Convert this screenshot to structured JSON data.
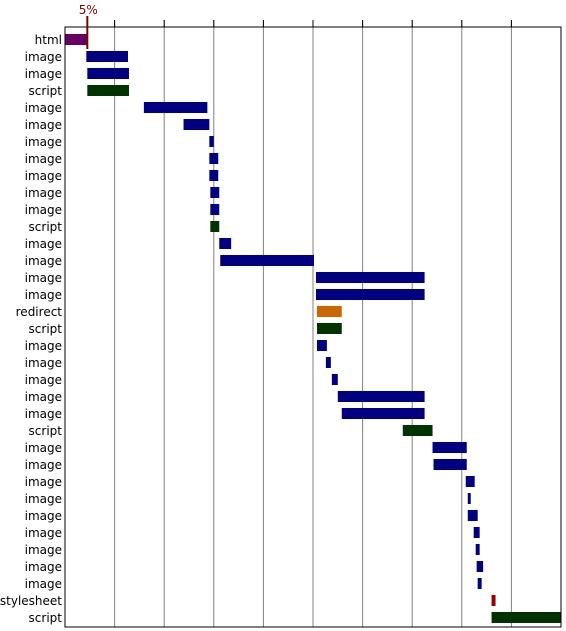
{
  "chart_data": {
    "type": "waterfall",
    "title": "",
    "xlabel": "",
    "ylabel": "",
    "x_unit": "percent_of_total_load_time",
    "xlim": [
      0,
      100
    ],
    "grid": true,
    "marker": {
      "label": "5%",
      "value": 4.5,
      "color": "#800000"
    },
    "colors": {
      "html": "#660066",
      "image": "#000080",
      "script": "#003300",
      "redirect": "#cc6600",
      "stylesheet": "#990000",
      "axis": "#000000",
      "grid": "#808080"
    },
    "rows": [
      {
        "label": "html",
        "start": 0.0,
        "end": 4.5
      },
      {
        "label": "image",
        "start": 4.3,
        "end": 12.7
      },
      {
        "label": "image",
        "start": 4.5,
        "end": 12.9
      },
      {
        "label": "script",
        "start": 4.5,
        "end": 12.9
      },
      {
        "label": "image",
        "start": 15.9,
        "end": 28.7
      },
      {
        "label": "image",
        "start": 23.9,
        "end": 29.1
      },
      {
        "label": "image",
        "start": 29.1,
        "end": 30.0
      },
      {
        "label": "image",
        "start": 29.1,
        "end": 30.9
      },
      {
        "label": "image",
        "start": 29.1,
        "end": 30.9
      },
      {
        "label": "image",
        "start": 29.3,
        "end": 31.1
      },
      {
        "label": "image",
        "start": 29.3,
        "end": 31.1
      },
      {
        "label": "script",
        "start": 29.3,
        "end": 31.1
      },
      {
        "label": "image",
        "start": 31.1,
        "end": 33.5
      },
      {
        "label": "image",
        "start": 31.3,
        "end": 50.2
      },
      {
        "label": "image",
        "start": 50.6,
        "end": 72.5
      },
      {
        "label": "image",
        "start": 50.6,
        "end": 72.5
      },
      {
        "label": "redirect",
        "start": 50.8,
        "end": 55.8
      },
      {
        "label": "script",
        "start": 50.8,
        "end": 55.8
      },
      {
        "label": "image",
        "start": 50.8,
        "end": 52.8
      },
      {
        "label": "image",
        "start": 52.6,
        "end": 53.6
      },
      {
        "label": "image",
        "start": 53.8,
        "end": 55.0
      },
      {
        "label": "image",
        "start": 55.0,
        "end": 72.5
      },
      {
        "label": "image",
        "start": 55.8,
        "end": 72.5
      },
      {
        "label": "script",
        "start": 68.1,
        "end": 74.1
      },
      {
        "label": "image",
        "start": 74.1,
        "end": 81.0
      },
      {
        "label": "image",
        "start": 74.3,
        "end": 81.0
      },
      {
        "label": "image",
        "start": 80.8,
        "end": 82.6
      },
      {
        "label": "image",
        "start": 81.2,
        "end": 81.8
      },
      {
        "label": "image",
        "start": 81.2,
        "end": 83.2
      },
      {
        "label": "image",
        "start": 82.4,
        "end": 83.6
      },
      {
        "label": "image",
        "start": 82.8,
        "end": 83.6
      },
      {
        "label": "image",
        "start": 83.0,
        "end": 84.3
      },
      {
        "label": "image",
        "start": 83.2,
        "end": 84.0
      },
      {
        "label": "stylesheet",
        "start": 86.0,
        "end": 86.8
      },
      {
        "label": "script",
        "start": 86.0,
        "end": 100.0
      }
    ]
  }
}
